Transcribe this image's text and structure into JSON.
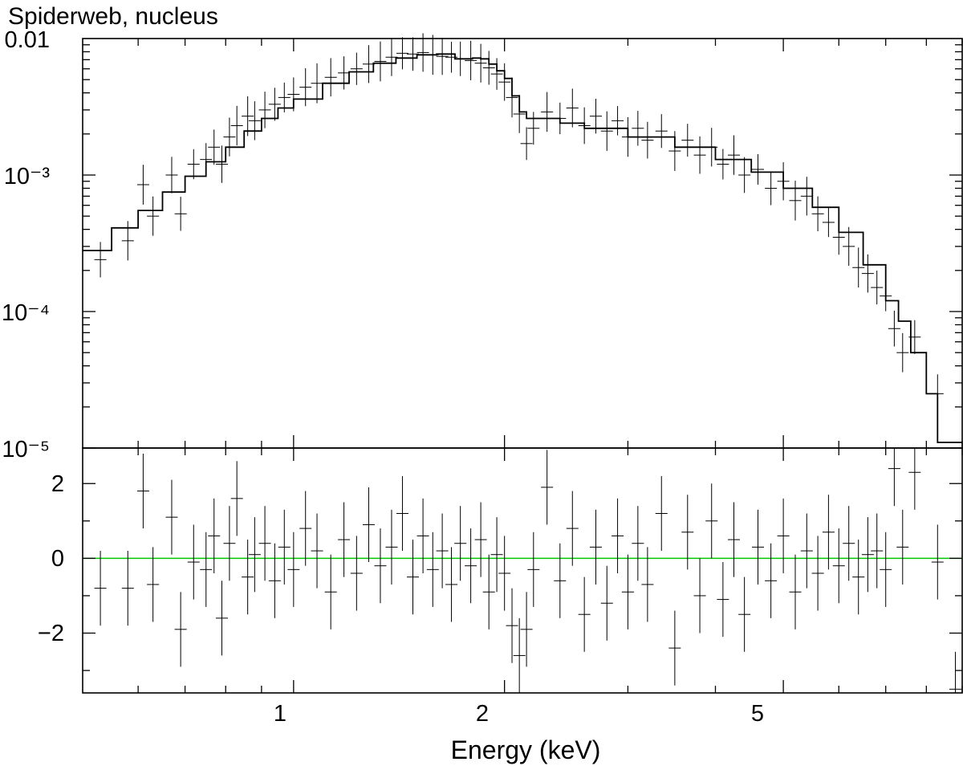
{
  "chart_data": [
    {
      "type": "step",
      "panel": "spectrum",
      "title": "Spiderweb, nucleus",
      "xlabel": "",
      "ylabel": "",
      "x_scale": "log",
      "y_scale": "log",
      "xlim": [
        0.5,
        9.0
      ],
      "ylim": [
        1e-05,
        0.01
      ],
      "y_tick_labels": [
        "0.01",
        "10⁻³",
        "10⁻⁴",
        "10⁻⁵"
      ],
      "model_color": "#000000",
      "data_color": "#000000",
      "model": {
        "x": [
          0.5,
          0.55,
          0.6,
          0.65,
          0.7,
          0.75,
          0.8,
          0.85,
          0.9,
          0.95,
          1.0,
          1.1,
          1.2,
          1.3,
          1.4,
          1.5,
          1.6,
          1.7,
          1.8,
          1.85,
          1.9,
          1.95,
          2.0,
          2.05,
          2.1,
          2.15,
          2.2,
          2.4,
          2.6,
          3.0,
          3.5,
          4.0,
          4.5,
          5.0,
          5.5,
          6.0,
          6.5,
          7.0,
          7.3,
          7.6,
          8.0,
          8.3,
          9.0
        ],
        "y": [
          0.00028,
          0.00041,
          0.00055,
          0.00075,
          0.00098,
          0.00125,
          0.0016,
          0.0021,
          0.0026,
          0.0031,
          0.0036,
          0.0047,
          0.0057,
          0.0066,
          0.0072,
          0.0076,
          0.0077,
          0.0071,
          0.0072,
          0.0071,
          0.0065,
          0.0058,
          0.0051,
          0.0038,
          0.0029,
          0.0026,
          0.0026,
          0.0024,
          0.0022,
          0.0019,
          0.0016,
          0.0013,
          0.00105,
          0.0008,
          0.00058,
          0.00038,
          0.00022,
          0.00012,
          8.5e-05,
          5e-05,
          2.5e-05,
          1.1e-05,
          1.1e-05
        ]
      },
      "data_points": [
        {
          "x": 0.53,
          "y": 0.00024
        },
        {
          "x": 0.58,
          "y": 0.00033
        },
        {
          "x": 0.61,
          "y": 0.00085
        },
        {
          "x": 0.63,
          "y": 0.0005
        },
        {
          "x": 0.67,
          "y": 0.001
        },
        {
          "x": 0.69,
          "y": 0.00052
        },
        {
          "x": 0.72,
          "y": 0.0012
        },
        {
          "x": 0.75,
          "y": 0.0013
        },
        {
          "x": 0.77,
          "y": 0.0016
        },
        {
          "x": 0.79,
          "y": 0.0012
        },
        {
          "x": 0.81,
          "y": 0.0019
        },
        {
          "x": 0.83,
          "y": 0.0023
        },
        {
          "x": 0.86,
          "y": 0.0027
        },
        {
          "x": 0.88,
          "y": 0.0025
        },
        {
          "x": 0.91,
          "y": 0.003
        },
        {
          "x": 0.94,
          "y": 0.0033
        },
        {
          "x": 0.97,
          "y": 0.0037
        },
        {
          "x": 1.0,
          "y": 0.0039
        },
        {
          "x": 1.04,
          "y": 0.0044
        },
        {
          "x": 1.08,
          "y": 0.0047
        },
        {
          "x": 1.13,
          "y": 0.0052
        },
        {
          "x": 1.18,
          "y": 0.0056
        },
        {
          "x": 1.23,
          "y": 0.006
        },
        {
          "x": 1.28,
          "y": 0.0065
        },
        {
          "x": 1.33,
          "y": 0.0068
        },
        {
          "x": 1.38,
          "y": 0.0073
        },
        {
          "x": 1.43,
          "y": 0.0078
        },
        {
          "x": 1.48,
          "y": 0.0077
        },
        {
          "x": 1.53,
          "y": 0.0079
        },
        {
          "x": 1.58,
          "y": 0.0076
        },
        {
          "x": 1.63,
          "y": 0.0074
        },
        {
          "x": 1.68,
          "y": 0.0073
        },
        {
          "x": 1.73,
          "y": 0.0071
        },
        {
          "x": 1.79,
          "y": 0.0069
        },
        {
          "x": 1.85,
          "y": 0.0066
        },
        {
          "x": 1.9,
          "y": 0.0061
        },
        {
          "x": 1.95,
          "y": 0.0055
        },
        {
          "x": 2.0,
          "y": 0.0048
        },
        {
          "x": 2.05,
          "y": 0.0037
        },
        {
          "x": 2.1,
          "y": 0.0028
        },
        {
          "x": 2.15,
          "y": 0.0017
        },
        {
          "x": 2.2,
          "y": 0.0022
        },
        {
          "x": 2.3,
          "y": 0.0029
        },
        {
          "x": 2.4,
          "y": 0.0026
        },
        {
          "x": 2.5,
          "y": 0.0031
        },
        {
          "x": 2.6,
          "y": 0.0023
        },
        {
          "x": 2.7,
          "y": 0.0027
        },
        {
          "x": 2.8,
          "y": 0.0021
        },
        {
          "x": 2.9,
          "y": 0.0025
        },
        {
          "x": 3.0,
          "y": 0.0019
        },
        {
          "x": 3.1,
          "y": 0.0022
        },
        {
          "x": 3.2,
          "y": 0.0018
        },
        {
          "x": 3.35,
          "y": 0.0021
        },
        {
          "x": 3.5,
          "y": 0.0015
        },
        {
          "x": 3.65,
          "y": 0.0018
        },
        {
          "x": 3.8,
          "y": 0.0014
        },
        {
          "x": 3.95,
          "y": 0.0016
        },
        {
          "x": 4.1,
          "y": 0.0012
        },
        {
          "x": 4.25,
          "y": 0.0014
        },
        {
          "x": 4.4,
          "y": 0.001
        },
        {
          "x": 4.6,
          "y": 0.0011
        },
        {
          "x": 4.8,
          "y": 0.0008
        },
        {
          "x": 5.0,
          "y": 0.0009
        },
        {
          "x": 5.2,
          "y": 0.00065
        },
        {
          "x": 5.4,
          "y": 0.0007
        },
        {
          "x": 5.6,
          "y": 0.00052
        },
        {
          "x": 5.8,
          "y": 0.00045
        },
        {
          "x": 6.0,
          "y": 0.00035
        },
        {
          "x": 6.2,
          "y": 0.0003
        },
        {
          "x": 6.4,
          "y": 0.00021
        },
        {
          "x": 6.6,
          "y": 0.00019
        },
        {
          "x": 6.8,
          "y": 0.00015
        },
        {
          "x": 7.0,
          "y": 0.00013
        },
        {
          "x": 7.2,
          "y": 7.5e-05
        },
        {
          "x": 7.4,
          "y": 5e-05
        },
        {
          "x": 7.7,
          "y": 6.5e-05
        },
        {
          "x": 8.3,
          "y": 2.5e-05
        }
      ]
    },
    {
      "type": "scatter",
      "panel": "residuals",
      "xlabel": "Energy (keV)",
      "ylabel": "",
      "x_scale": "log",
      "xlim": [
        0.5,
        9.0
      ],
      "ylim": [
        -3.6,
        2.95
      ],
      "y_ticks": [
        2,
        0,
        -2
      ],
      "y_tick_labels": [
        "2",
        "0",
        "−2"
      ],
      "x_ticks": [
        1,
        2,
        5
      ],
      "x_tick_labels": [
        "1",
        "2",
        "5"
      ],
      "zero_line_color": "#00c800",
      "data_color": "#000000",
      "data_points": [
        {
          "x": 0.53,
          "y": -0.8
        },
        {
          "x": 0.58,
          "y": -0.8
        },
        {
          "x": 0.61,
          "y": 1.8
        },
        {
          "x": 0.63,
          "y": -0.7
        },
        {
          "x": 0.67,
          "y": 1.1
        },
        {
          "x": 0.69,
          "y": -1.9
        },
        {
          "x": 0.72,
          "y": -0.1
        },
        {
          "x": 0.75,
          "y": -0.3
        },
        {
          "x": 0.77,
          "y": 0.6
        },
        {
          "x": 0.79,
          "y": -1.6
        },
        {
          "x": 0.81,
          "y": 0.4
        },
        {
          "x": 0.83,
          "y": 1.6
        },
        {
          "x": 0.86,
          "y": -0.5
        },
        {
          "x": 0.88,
          "y": 0.1
        },
        {
          "x": 0.91,
          "y": 0.4
        },
        {
          "x": 0.94,
          "y": -0.6
        },
        {
          "x": 0.97,
          "y": 0.3
        },
        {
          "x": 1.0,
          "y": -0.3
        },
        {
          "x": 1.04,
          "y": 0.8
        },
        {
          "x": 1.08,
          "y": 0.2
        },
        {
          "x": 1.13,
          "y": -0.9
        },
        {
          "x": 1.18,
          "y": 0.5
        },
        {
          "x": 1.23,
          "y": -0.4
        },
        {
          "x": 1.28,
          "y": 0.9
        },
        {
          "x": 1.33,
          "y": -0.2
        },
        {
          "x": 1.38,
          "y": 0.3
        },
        {
          "x": 1.43,
          "y": 1.2
        },
        {
          "x": 1.48,
          "y": -0.5
        },
        {
          "x": 1.53,
          "y": 0.6
        },
        {
          "x": 1.58,
          "y": -0.3
        },
        {
          "x": 1.63,
          "y": 0.2
        },
        {
          "x": 1.68,
          "y": -0.7
        },
        {
          "x": 1.73,
          "y": 0.4
        },
        {
          "x": 1.79,
          "y": -0.2
        },
        {
          "x": 1.85,
          "y": 0.5
        },
        {
          "x": 1.9,
          "y": -0.9
        },
        {
          "x": 1.95,
          "y": 0.1
        },
        {
          "x": 2.0,
          "y": -0.4
        },
        {
          "x": 2.05,
          "y": -1.8
        },
        {
          "x": 2.1,
          "y": -2.6
        },
        {
          "x": 2.15,
          "y": -1.9
        },
        {
          "x": 2.2,
          "y": -0.3
        },
        {
          "x": 2.3,
          "y": 1.9
        },
        {
          "x": 2.4,
          "y": -0.6
        },
        {
          "x": 2.5,
          "y": 0.8
        },
        {
          "x": 2.6,
          "y": -1.5
        },
        {
          "x": 2.7,
          "y": 0.3
        },
        {
          "x": 2.8,
          "y": -1.2
        },
        {
          "x": 2.9,
          "y": 0.6
        },
        {
          "x": 3.0,
          "y": -0.9
        },
        {
          "x": 3.1,
          "y": 0.4
        },
        {
          "x": 3.2,
          "y": -0.7
        },
        {
          "x": 3.35,
          "y": 1.2
        },
        {
          "x": 3.5,
          "y": -2.4
        },
        {
          "x": 3.65,
          "y": 0.7
        },
        {
          "x": 3.8,
          "y": -1.0
        },
        {
          "x": 3.95,
          "y": 1.0
        },
        {
          "x": 4.1,
          "y": -1.1
        },
        {
          "x": 4.25,
          "y": 0.5
        },
        {
          "x": 4.4,
          "y": -1.5
        },
        {
          "x": 4.6,
          "y": 0.3
        },
        {
          "x": 4.8,
          "y": -0.6
        },
        {
          "x": 5.0,
          "y": 0.6
        },
        {
          "x": 5.2,
          "y": -0.9
        },
        {
          "x": 5.4,
          "y": 0.2
        },
        {
          "x": 5.6,
          "y": -0.4
        },
        {
          "x": 5.8,
          "y": 0.7
        },
        {
          "x": 6.0,
          "y": -0.2
        },
        {
          "x": 6.2,
          "y": 0.4
        },
        {
          "x": 6.4,
          "y": -0.5
        },
        {
          "x": 6.6,
          "y": 0.1
        },
        {
          "x": 6.8,
          "y": 0.2
        },
        {
          "x": 7.0,
          "y": -0.3
        },
        {
          "x": 7.2,
          "y": 2.4
        },
        {
          "x": 7.4,
          "y": 0.3
        },
        {
          "x": 7.7,
          "y": 2.3
        },
        {
          "x": 8.3,
          "y": -0.1
        },
        {
          "x": 8.8,
          "y": -3.5
        }
      ]
    }
  ]
}
